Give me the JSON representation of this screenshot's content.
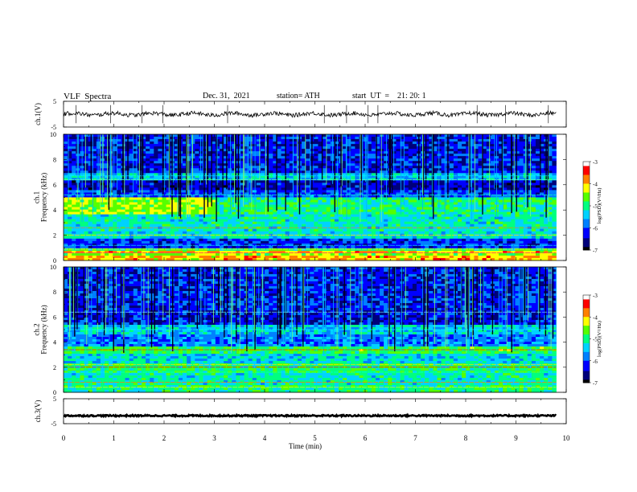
{
  "header": {
    "title": "VLF  Spectra",
    "date": "Dec. 31,  2021",
    "station": "station= ATH",
    "start": "start  UT  =    21: 20: 1"
  },
  "chart_data": [
    {
      "type": "line",
      "name": "ch1-waveform",
      "ylabel": "ch.1(V)",
      "ylim": [
        -5,
        5
      ],
      "yticks": [
        "5",
        "-5"
      ],
      "level": 0,
      "color": "#000000"
    },
    {
      "type": "heatmap",
      "name": "ch1-spectrogram",
      "ylabel": "ch.1\nFrequency  (kHz)",
      "ylim": [
        0,
        10
      ],
      "yticks": [
        "0",
        "2",
        "4",
        "6",
        "8",
        "10"
      ],
      "colorbar": {
        "label": "log(PSD)(V²/Hz)",
        "range": [
          -7,
          -3
        ],
        "ticks": [
          "-3",
          "-4",
          "-5",
          "-6",
          "-7"
        ]
      }
    },
    {
      "type": "heatmap",
      "name": "ch2-spectrogram",
      "ylabel": "ch.2\nFrequency  (kHz)",
      "ylim": [
        0,
        10
      ],
      "yticks": [
        "0",
        "2",
        "4",
        "6",
        "8",
        "10"
      ],
      "colorbar": {
        "label": "log(PSD)(V²/Hz)",
        "range": [
          -7,
          -3
        ],
        "ticks": [
          "-3",
          "-4",
          "-5",
          "-6",
          "-7"
        ]
      }
    },
    {
      "type": "line",
      "name": "ch3-waveform",
      "ylabel": "ch.3(V)",
      "ylim": [
        -5,
        5
      ],
      "yticks": [
        "5",
        "-5"
      ],
      "level": -1.8,
      "color": "#000000"
    }
  ],
  "xaxis": {
    "label": "Time  (min)",
    "xlim": [
      0,
      10
    ],
    "ticks": [
      "0",
      "1",
      "2",
      "3",
      "4",
      "5",
      "6",
      "7",
      "8",
      "9",
      "10"
    ],
    "data_end_min": 9.8
  },
  "colormap": [
    "#000000",
    "#00007a",
    "#0000ff",
    "#0080ff",
    "#00d2ff",
    "#00ff80",
    "#55ff00",
    "#ffff00",
    "#ff8000",
    "#ff0000",
    "#ffffff"
  ]
}
